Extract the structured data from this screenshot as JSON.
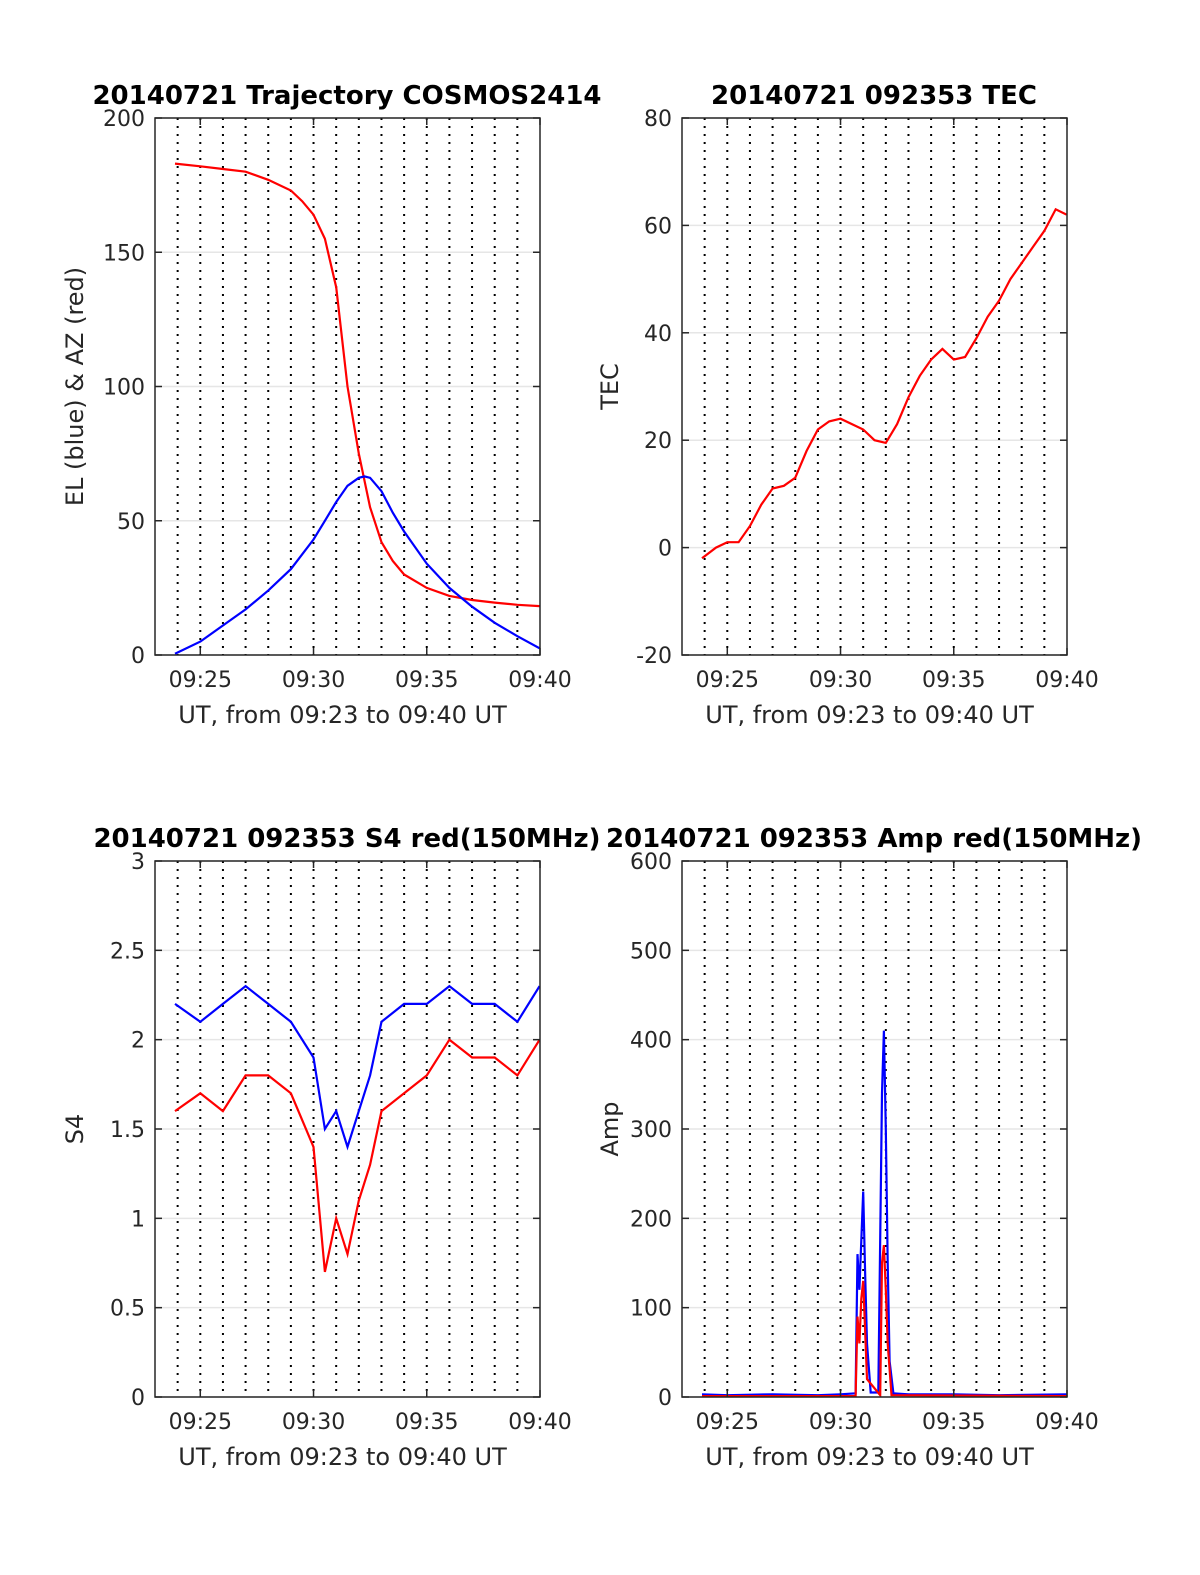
{
  "figure": {
    "background": "#ffffff"
  },
  "chart_data": [
    {
      "id": "trajectory",
      "type": "line",
      "title": "20140721 Trajectory COSMOS2414",
      "xlabel": "UT, from 09:23 to 09:40 UT",
      "ylabel": "EL (blue) & AZ (red)",
      "xlim": [
        "09:23",
        "09:40"
      ],
      "x_ticks": [
        "09:25",
        "09:30",
        "09:35",
        "09:40"
      ],
      "ylim": [
        0,
        200
      ],
      "y_ticks": [
        "0",
        "50",
        "100",
        "150",
        "200"
      ],
      "grid": true,
      "series": [
        {
          "color": "#ff0000",
          "x": [
            "09:23:53",
            "09:25:00",
            "09:26:00",
            "09:27:00",
            "09:28:00",
            "09:29:00",
            "09:29:30",
            "09:30:00",
            "09:30:30",
            "09:31:00",
            "09:31:30",
            "09:32:00",
            "09:32:30",
            "09:33:00",
            "09:33:30",
            "09:34:00",
            "09:35:00",
            "09:36:00",
            "09:37:00",
            "09:38:00",
            "09:39:00",
            "09:39:59"
          ],
          "values": [
            183,
            182,
            181,
            180,
            177,
            173,
            169,
            164,
            155,
            137,
            100,
            75,
            55,
            42,
            35,
            30,
            25,
            22,
            20.5,
            19.5,
            18.7,
            18.2
          ]
        },
        {
          "color": "#0000ff",
          "x": [
            "09:23:53",
            "09:25:00",
            "09:26:00",
            "09:27:00",
            "09:28:00",
            "09:29:00",
            "09:30:00",
            "09:30:30",
            "09:31:00",
            "09:31:30",
            "09:32:00",
            "09:32:15",
            "09:32:30",
            "09:33:00",
            "09:33:30",
            "09:34:00",
            "09:35:00",
            "09:36:00",
            "09:37:00",
            "09:38:00",
            "09:39:00",
            "09:39:59"
          ],
          "values": [
            0.5,
            5,
            11,
            17,
            24,
            32,
            43,
            50,
            57,
            63,
            66,
            66.5,
            66,
            61,
            53,
            46,
            34,
            25,
            18,
            12,
            7,
            2.5
          ]
        }
      ]
    },
    {
      "id": "tec",
      "type": "line",
      "title": "20140721 092353 TEC",
      "xlabel": "UT, from 09:23 to 09:40 UT",
      "ylabel": "TEC",
      "xlim": [
        "09:23",
        "09:40"
      ],
      "x_ticks": [
        "09:25",
        "09:30",
        "09:35",
        "09:40"
      ],
      "ylim": [
        -20,
        80
      ],
      "y_ticks": [
        "-20",
        "0",
        "20",
        "40",
        "60",
        "80"
      ],
      "grid": true,
      "series": [
        {
          "color": "#ff0000",
          "x": [
            "09:23:53",
            "09:24:30",
            "09:25:00",
            "09:25:30",
            "09:26:00",
            "09:26:30",
            "09:27:00",
            "09:27:30",
            "09:28:00",
            "09:28:30",
            "09:29:00",
            "09:29:30",
            "09:30:00",
            "09:30:30",
            "09:31:00",
            "09:31:30",
            "09:32:00",
            "09:32:30",
            "09:33:00",
            "09:33:30",
            "09:34:00",
            "09:34:30",
            "09:35:00",
            "09:35:30",
            "09:36:00",
            "09:36:30",
            "09:37:00",
            "09:37:30",
            "09:38:00",
            "09:38:30",
            "09:39:00",
            "09:39:30",
            "09:39:59"
          ],
          "values": [
            -2,
            0,
            1,
            1,
            4,
            8,
            11,
            11.5,
            13,
            18,
            22,
            23.5,
            24,
            23,
            22,
            20,
            19.5,
            23,
            28,
            32,
            35,
            37,
            35,
            35.5,
            39,
            43,
            46,
            50,
            53,
            56,
            59,
            63,
            62
          ]
        }
      ]
    },
    {
      "id": "s4",
      "type": "line",
      "title": "20140721 092353 S4 red(150MHz)",
      "xlabel": "UT, from 09:23 to 09:40 UT",
      "ylabel": "S4",
      "xlim": [
        "09:23",
        "09:40"
      ],
      "x_ticks": [
        "09:25",
        "09:30",
        "09:35",
        "09:40"
      ],
      "ylim": [
        0,
        3
      ],
      "y_ticks": [
        "0",
        "0.5",
        "1",
        "1.5",
        "2",
        "2.5",
        "3"
      ],
      "grid": true,
      "series": [
        {
          "color": "#ff0000",
          "x": [
            "09:23:53",
            "09:25:00",
            "09:26:00",
            "09:27:00",
            "09:28:00",
            "09:29:00",
            "09:30:00",
            "09:30:30",
            "09:31:00",
            "09:31:30",
            "09:32:00",
            "09:32:30",
            "09:33:00",
            "09:34:00",
            "09:35:00",
            "09:36:00",
            "09:37:00",
            "09:38:00",
            "09:39:00",
            "09:39:59"
          ],
          "values": [
            1.6,
            1.7,
            1.6,
            1.8,
            1.8,
            1.7,
            1.4,
            0.7,
            1.0,
            0.8,
            1.1,
            1.3,
            1.6,
            1.7,
            1.8,
            2.0,
            1.9,
            1.9,
            1.8,
            2.0
          ]
        },
        {
          "color": "#0000ff",
          "x": [
            "09:23:53",
            "09:25:00",
            "09:26:00",
            "09:27:00",
            "09:28:00",
            "09:29:00",
            "09:30:00",
            "09:30:30",
            "09:31:00",
            "09:31:30",
            "09:32:00",
            "09:32:30",
            "09:33:00",
            "09:34:00",
            "09:35:00",
            "09:36:00",
            "09:37:00",
            "09:38:00",
            "09:39:00",
            "09:39:59"
          ],
          "values": [
            2.2,
            2.1,
            2.2,
            2.3,
            2.2,
            2.1,
            1.9,
            1.5,
            1.6,
            1.4,
            1.6,
            1.8,
            2.1,
            2.2,
            2.2,
            2.3,
            2.2,
            2.2,
            2.1,
            2.3
          ]
        }
      ]
    },
    {
      "id": "amp",
      "type": "line",
      "title": "20140721 092353 Amp red(150MHz)",
      "xlabel": "UT, from 09:23 to 09:40 UT",
      "ylabel": "Amp",
      "xlim": [
        "09:23",
        "09:40"
      ],
      "x_ticks": [
        "09:25",
        "09:30",
        "09:35",
        "09:40"
      ],
      "ylim": [
        0,
        600
      ],
      "y_ticks": [
        "0",
        "100",
        "200",
        "300",
        "400",
        "500",
        "600"
      ],
      "grid": true,
      "series": [
        {
          "color": "#0000ff",
          "x": [
            "09:23:53",
            "09:25:00",
            "09:27:00",
            "09:29:00",
            "09:30:00",
            "09:30:40",
            "09:30:45",
            "09:30:50",
            "09:30:55",
            "09:31:00",
            "09:31:05",
            "09:31:10",
            "09:31:20",
            "09:31:40",
            "09:31:50",
            "09:31:55",
            "09:32:00",
            "09:32:05",
            "09:32:10",
            "09:32:20",
            "09:33:00",
            "09:35:00",
            "09:37:00",
            "09:39:59"
          ],
          "values": [
            3,
            2,
            3,
            2,
            3,
            4,
            160,
            120,
            175,
            230,
            140,
            60,
            5,
            5,
            340,
            410,
            300,
            150,
            40,
            4,
            3,
            3,
            2,
            3
          ]
        },
        {
          "color": "#ff0000",
          "x": [
            "09:23:53",
            "09:30:40",
            "09:30:45",
            "09:30:50",
            "09:30:55",
            "09:31:00",
            "09:31:10",
            "09:31:45",
            "09:31:50",
            "09:31:55",
            "09:32:00",
            "09:32:05",
            "09:32:15",
            "09:39:59"
          ],
          "values": [
            1,
            1,
            90,
            60,
            110,
            130,
            20,
            2,
            150,
            170,
            120,
            60,
            2,
            1
          ]
        }
      ]
    }
  ]
}
